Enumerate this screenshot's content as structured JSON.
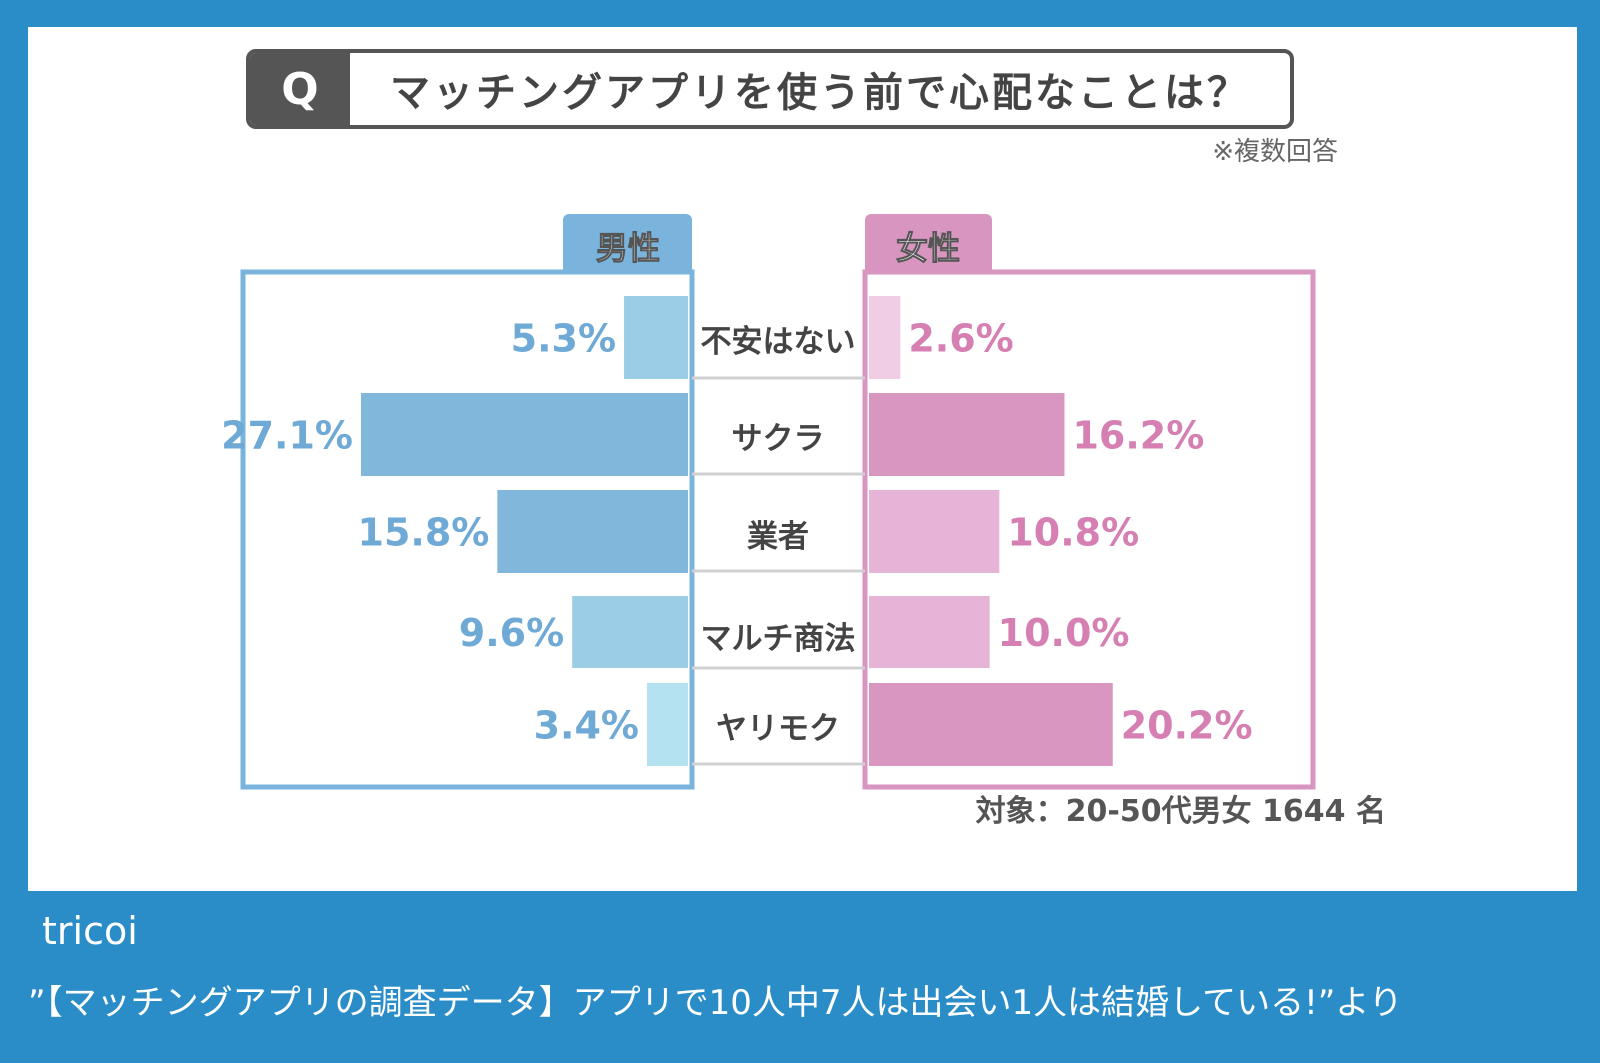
{
  "question": {
    "badge": "Q",
    "text": "マッチングアプリを使う前で心配なことは？",
    "note": "※複数回答"
  },
  "respondents": "対象：20-50代男女 1644 名",
  "footer": {
    "source": "tricoi",
    "quote": "”【マッチングアプリの調査データ】アプリで10人中7人は出会い1人は結婚している!”より"
  },
  "colors": {
    "male_frame": "#7ab4dc",
    "female_frame": "#d795c0",
    "male_label_text": "#6fa9d6",
    "female_label_text": "#d67fb3",
    "category_text": "#444444"
  },
  "chart_data": {
    "type": "bar",
    "orientation": "horizontal-butterfly",
    "categories": [
      "不安はない",
      "サクラ",
      "業者",
      "マルチ商法",
      "ヤリモク"
    ],
    "xlim": [
      0,
      30
    ],
    "series": [
      {
        "name": "男性",
        "side": "left",
        "values": [
          5.3,
          27.1,
          15.8,
          9.6,
          3.4
        ],
        "labels": [
          "5.3%",
          "27.1%",
          "15.8%",
          "9.6%",
          "3.4%"
        ],
        "bar_colors": [
          "#9ccde6",
          "#82b7dc",
          "#82b7dc",
          "#9ccde6",
          "#b4e2f1"
        ]
      },
      {
        "name": "女性",
        "side": "right",
        "values": [
          2.6,
          16.2,
          10.8,
          10.0,
          20.2
        ],
        "labels": [
          "2.6%",
          "16.2%",
          "10.8%",
          "10.0%",
          "20.2%"
        ],
        "bar_colors": [
          "#f1cde5",
          "#d996c1",
          "#e6b4d7",
          "#e6b4d7",
          "#d996c1"
        ]
      }
    ]
  }
}
